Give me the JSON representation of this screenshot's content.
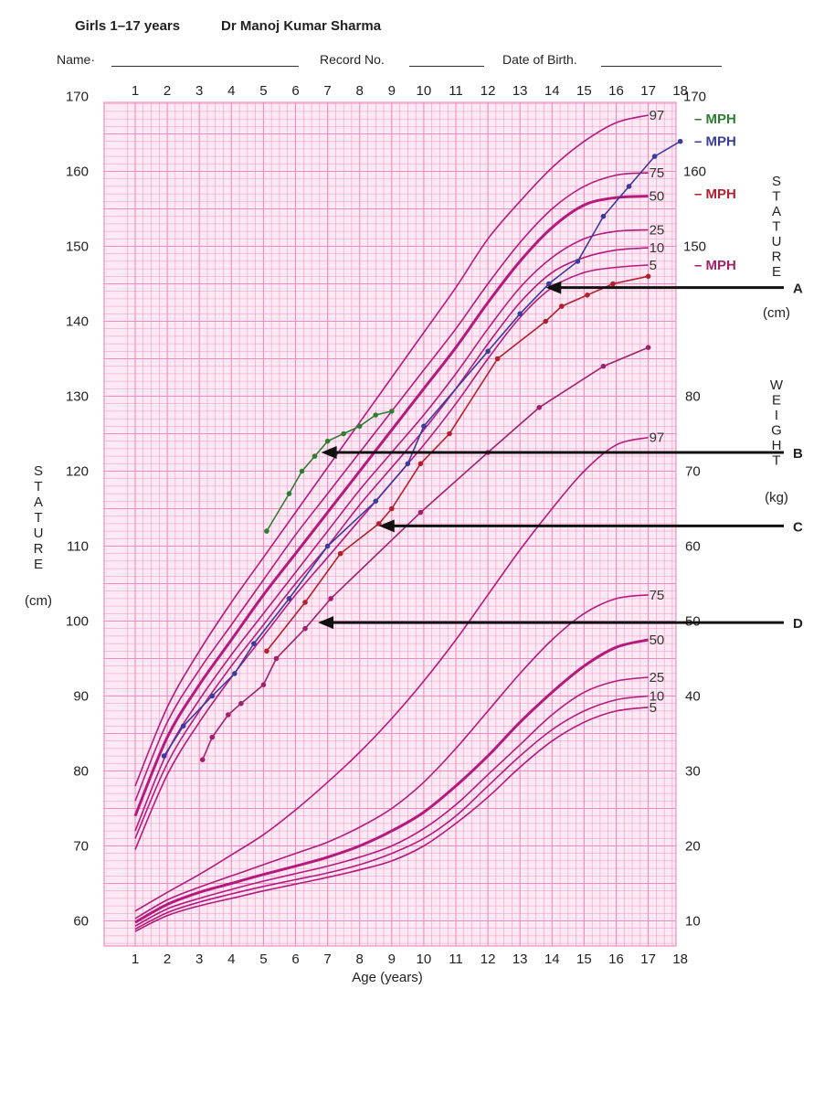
{
  "header": {
    "title": "Girls 1–17 years",
    "author": "Dr  Manoj Kumar Sharma",
    "name_label": "Name·",
    "record_label": "Record No.",
    "dob_label": "Date of Birth."
  },
  "colors": {
    "grid": "#f08cc0",
    "grid_bg": "#fde9f3",
    "percentile": "#b5197e",
    "green": "#2f7d32",
    "blue": "#3b3b9e",
    "red": "#b21f2d",
    "purple": "#a1206d",
    "arrow": "#111111"
  },
  "chart_data": {
    "type": "line",
    "xlabel": "Age (years)",
    "x_ticks": [
      1,
      2,
      3,
      4,
      5,
      6,
      7,
      8,
      9,
      10,
      11,
      12,
      13,
      14,
      15,
      16,
      17,
      18
    ],
    "xlim": [
      1,
      18
    ],
    "stature_axis": {
      "label_letters": [
        "S",
        "T",
        "A",
        "T",
        "U",
        "R",
        "E"
      ],
      "unit": "(cm)",
      "ylim": [
        55,
        180
      ],
      "left_ticks": [
        60,
        70,
        80,
        90,
        100,
        110,
        120,
        130,
        140,
        150,
        160,
        170
      ],
      "right_ticks": [
        150,
        160,
        170
      ]
    },
    "weight_axis": {
      "label_letters": [
        "W",
        "E",
        "I",
        "G",
        "H",
        "T"
      ],
      "unit": "(kg)",
      "ticks": [
        10,
        20,
        30,
        40,
        50,
        60,
        70,
        80
      ],
      "kg_to_cm": {
        "at_10": 60,
        "at_80": 130
      }
    },
    "stature_percentiles": [
      {
        "name": "97",
        "bold": false,
        "x": [
          1,
          2,
          3,
          4,
          5,
          6,
          7,
          8,
          9,
          10,
          11,
          12,
          13,
          14,
          15,
          16,
          17
        ],
        "y": [
          78,
          88.5,
          96,
          102.5,
          108.5,
          114.5,
          120.5,
          126.5,
          132.5,
          138.5,
          144.5,
          151,
          156,
          160.5,
          164,
          166.5,
          167.5
        ]
      },
      {
        "name": "75",
        "bold": false,
        "x": [
          1,
          2,
          3,
          4,
          5,
          6,
          7,
          8,
          9,
          10,
          11,
          12,
          13,
          14,
          15,
          16,
          17
        ],
        "y": [
          76,
          86.5,
          93.5,
          99.5,
          105.5,
          111.5,
          117,
          122.5,
          128,
          133.5,
          139,
          145,
          150.5,
          155,
          158,
          159.5,
          159.8
        ]
      },
      {
        "name": "50",
        "bold": true,
        "x": [
          1,
          2,
          3,
          4,
          5,
          6,
          7,
          8,
          9,
          10,
          11,
          12,
          13,
          14,
          15,
          16,
          17
        ],
        "y": [
          74,
          84.5,
          91.5,
          97.5,
          103.5,
          109,
          114.5,
          120,
          125.5,
          131,
          136.5,
          142.5,
          148,
          152.5,
          155.5,
          156.5,
          156.7
        ]
      },
      {
        "name": "25",
        "bold": false,
        "x": [
          1,
          2,
          3,
          4,
          5,
          6,
          7,
          8,
          9,
          10,
          11,
          12,
          13,
          14,
          15,
          16,
          17
        ],
        "y": [
          72,
          82.5,
          89.5,
          95.5,
          101,
          106.5,
          112,
          117.5,
          122.5,
          127.5,
          133,
          139,
          144.5,
          148.5,
          151,
          152,
          152.2
        ]
      },
      {
        "name": "10",
        "bold": false,
        "x": [
          1,
          2,
          3,
          4,
          5,
          6,
          7,
          8,
          9,
          10,
          11,
          12,
          13,
          14,
          15,
          16,
          17
        ],
        "y": [
          71,
          81,
          88,
          94,
          99.5,
          105,
          110,
          115.5,
          120.5,
          125.5,
          131,
          137,
          142.5,
          146.5,
          148.5,
          149.5,
          149.8
        ]
      },
      {
        "name": "5",
        "bold": false,
        "x": [
          1,
          2,
          3,
          4,
          5,
          6,
          7,
          8,
          9,
          10,
          11,
          12,
          13,
          14,
          15,
          16,
          17
        ],
        "y": [
          69.5,
          79.5,
          86.5,
          92.5,
          98,
          103.5,
          108.5,
          113.5,
          118.5,
          123.5,
          129,
          135,
          140.5,
          144.5,
          146.5,
          147.2,
          147.5
        ]
      }
    ],
    "weight_percentiles": [
      {
        "name": "97",
        "bold": false,
        "x": [
          1,
          2,
          3,
          4,
          5,
          6,
          7,
          8,
          9,
          10,
          11,
          12,
          13,
          14,
          15,
          16,
          17
        ],
        "y": [
          11.3,
          13.8,
          16.2,
          18.8,
          21.5,
          24.8,
          28.5,
          32.5,
          37,
          42,
          47.5,
          53.5,
          59.5,
          65,
          70,
          73.5,
          74.5
        ]
      },
      {
        "name": "75",
        "bold": false,
        "x": [
          1,
          2,
          3,
          4,
          5,
          6,
          7,
          8,
          9,
          10,
          11,
          12,
          13,
          14,
          15,
          16,
          17
        ],
        "y": [
          10.3,
          12.8,
          14.5,
          16,
          17.5,
          19,
          20.5,
          22.5,
          25,
          28.5,
          33,
          38,
          43,
          47.5,
          51,
          53,
          53.5
        ]
      },
      {
        "name": "50",
        "bold": true,
        "x": [
          1,
          2,
          3,
          4,
          5,
          6,
          7,
          8,
          9,
          10,
          11,
          12,
          13,
          14,
          15,
          16,
          17
        ],
        "y": [
          9.8,
          12.2,
          13.8,
          15,
          16.2,
          17.3,
          18.5,
          20,
          22,
          24.5,
          28,
          32,
          36.5,
          40.5,
          44,
          46.5,
          47.5
        ]
      },
      {
        "name": "25",
        "bold": false,
        "x": [
          1,
          2,
          3,
          4,
          5,
          6,
          7,
          8,
          9,
          10,
          11,
          12,
          13,
          14,
          15,
          16,
          17
        ],
        "y": [
          9.3,
          11.6,
          13,
          14.2,
          15.3,
          16.3,
          17.3,
          18.5,
          20,
          22.3,
          25.5,
          29.5,
          33.5,
          37.5,
          40.5,
          42,
          42.5
        ]
      },
      {
        "name": "10",
        "bold": false,
        "x": [
          1,
          2,
          3,
          4,
          5,
          6,
          7,
          8,
          9,
          10,
          11,
          12,
          13,
          14,
          15,
          16,
          17
        ],
        "y": [
          8.9,
          11.1,
          12.5,
          13.6,
          14.6,
          15.5,
          16.4,
          17.5,
          19,
          21,
          24,
          28,
          32,
          35.5,
          38,
          39.5,
          40
        ]
      },
      {
        "name": "5",
        "bold": false,
        "x": [
          1,
          2,
          3,
          4,
          5,
          6,
          7,
          8,
          9,
          10,
          11,
          12,
          13,
          14,
          15,
          16,
          17
        ],
        "y": [
          8.6,
          10.7,
          12,
          13,
          14,
          14.9,
          15.8,
          16.8,
          18,
          20,
          23,
          26.5,
          30.5,
          34,
          36.5,
          38,
          38.5
        ]
      }
    ],
    "patients": [
      {
        "color_key": "green",
        "x": [
          5.1,
          5.8,
          6.2,
          6.6,
          7,
          7.5,
          8,
          8.5,
          9
        ],
        "y": [
          112,
          117,
          120,
          122,
          124,
          125,
          126,
          127.5,
          128
        ]
      },
      {
        "color_key": "blue",
        "x": [
          1.9,
          2.5,
          3.4,
          4.1,
          4.7,
          5.8,
          7,
          8.5,
          9.5,
          10,
          12,
          13,
          13.9,
          14.8,
          15.6,
          16.4,
          17.2,
          18
        ],
        "y": [
          82,
          86,
          90,
          93,
          97,
          103,
          110,
          116,
          121,
          126,
          136,
          141,
          145,
          148,
          154,
          158,
          162,
          164
        ]
      },
      {
        "color_key": "red",
        "x": [
          5.1,
          6.3,
          7.4,
          8.6,
          9,
          9.9,
          10.8,
          12.3,
          13.8,
          14.3,
          15.1,
          15.9,
          17
        ],
        "y": [
          96,
          102.5,
          109,
          113,
          115,
          121,
          125,
          135,
          140,
          142,
          143.5,
          145,
          146
        ]
      },
      {
        "color_key": "purple",
        "x": [
          3.1,
          3.4,
          3.9,
          4.3,
          5,
          5.4,
          6.3,
          7.1,
          9.9,
          12,
          13.6,
          15.6,
          17
        ],
        "y": [
          81.5,
          84.5,
          87.5,
          89,
          91.5,
          95,
          99,
          103,
          114.5,
          122.5,
          128.5,
          134,
          136.5
        ]
      }
    ],
    "mph_markers": [
      {
        "label": "– MPH",
        "color_key": "green",
        "y": 167
      },
      {
        "label": "– MPH",
        "color_key": "blue",
        "y": 164
      },
      {
        "label": "– MPH",
        "color_key": "red",
        "y": 157
      },
      {
        "label": "– MPH",
        "color_key": "purple",
        "y": 147.5
      }
    ],
    "arrows": [
      {
        "label": "A",
        "tip_x": 13.8,
        "y": 144.5
      },
      {
        "label": "B",
        "tip_x": 6.8,
        "y": 122.5
      },
      {
        "label": "C",
        "tip_x": 8.6,
        "y": 112.7
      },
      {
        "label": "D",
        "tip_x": 6.7,
        "y": 99.8
      }
    ]
  }
}
